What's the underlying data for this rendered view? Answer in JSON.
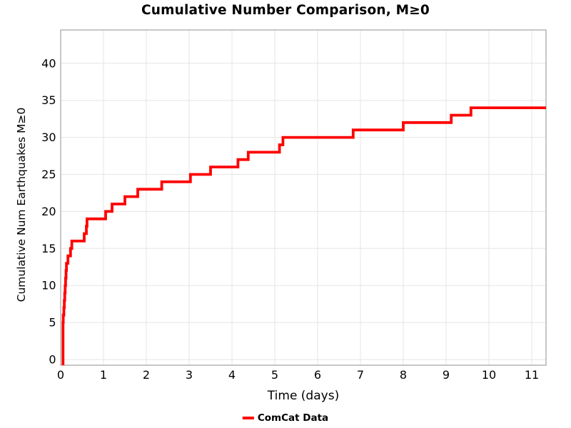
{
  "chart_data": {
    "type": "line",
    "subtype": "cumulative-step",
    "title": "Cumulative Number Comparison, M≥0",
    "xlabel": "Time (days)",
    "ylabel": "Cumulative Num Earthquakes M≥0",
    "xlim": [
      0,
      11.333
    ],
    "ylim": [
      -0.771,
      44.51
    ],
    "xticks": [
      0,
      1,
      2,
      3,
      4,
      5,
      6,
      7,
      8,
      9,
      10,
      11
    ],
    "xtick_labels": [
      "0",
      "1",
      "2",
      "3",
      "4",
      "5",
      "6",
      "7",
      "8",
      "9",
      "10",
      "11"
    ],
    "yticks": [
      0,
      5,
      10,
      15,
      20,
      25,
      30,
      35,
      40
    ],
    "ytick_labels": [
      "0",
      "5",
      "10",
      "15",
      "20",
      "25",
      "30",
      "35",
      "40"
    ],
    "grid": true,
    "legend_position": "bottom-center",
    "series": [
      {
        "name": "ComCat Data",
        "color": "#ff0000",
        "line_width": 3.8,
        "start_at_axis_bottom": true,
        "t_end": 11.333,
        "points": [
          [
            0.055,
            1
          ],
          [
            0.055,
            2
          ],
          [
            0.055,
            3
          ],
          [
            0.055,
            4
          ],
          [
            0.055,
            5
          ],
          [
            0.06,
            6
          ],
          [
            0.075,
            7
          ],
          [
            0.085,
            8
          ],
          [
            0.095,
            9
          ],
          [
            0.105,
            10
          ],
          [
            0.115,
            11
          ],
          [
            0.125,
            12
          ],
          [
            0.135,
            13
          ],
          [
            0.17,
            14
          ],
          [
            0.23,
            15
          ],
          [
            0.26,
            16
          ],
          [
            0.55,
            17
          ],
          [
            0.6,
            18
          ],
          [
            0.615,
            19
          ],
          [
            1.05,
            20
          ],
          [
            1.2,
            21
          ],
          [
            1.5,
            22
          ],
          [
            1.8,
            23
          ],
          [
            2.36,
            24
          ],
          [
            3.03,
            25
          ],
          [
            3.5,
            26
          ],
          [
            4.14,
            27
          ],
          [
            4.38,
            28
          ],
          [
            5.11,
            29
          ],
          [
            5.19,
            30
          ],
          [
            6.83,
            31
          ],
          [
            8.0,
            32
          ],
          [
            9.12,
            33
          ],
          [
            9.58,
            34
          ]
        ]
      }
    ]
  },
  "legend": {
    "entries": [
      {
        "label": "ComCat Data",
        "color": "#ff0000"
      }
    ]
  },
  "colors": {
    "curve": "#ff0000",
    "gridline": "#e5e5e5",
    "plot_border": "#a9a9a9",
    "text": "#000000",
    "background": "#ffffff"
  }
}
